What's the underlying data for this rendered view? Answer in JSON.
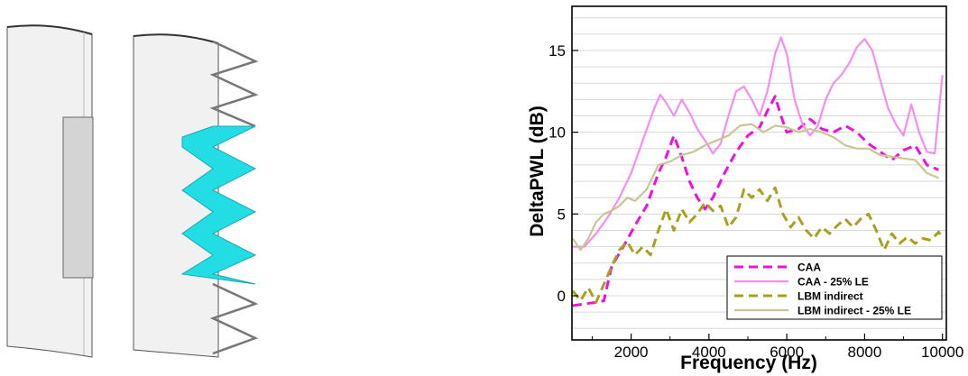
{
  "colors": {
    "blade_fill": "#f1f1f1",
    "blade_edge": "#555555",
    "insert_fill": "#d4d4d4",
    "serration_highlight": "#22dde4",
    "serration_edge": "#777777",
    "grid": "#d8d8d8"
  },
  "chart_data": {
    "type": "line",
    "xlabel": "Frequency (Hz)",
    "ylabel": "DeltaPWL (dB)",
    "xlim": [
      480,
      10100
    ],
    "ylim": [
      -2.7,
      17.7
    ],
    "xticks": [
      2000,
      4000,
      6000,
      8000,
      10000
    ],
    "yticks": [
      0,
      5,
      10,
      15
    ],
    "grid": "horizontal",
    "legend_position": "bottom-right",
    "series": [
      {
        "name": "CAA",
        "color": "#ee11dd",
        "dash": "dashed",
        "x": [
          500,
          800,
          1100,
          1300,
          1500,
          1800,
          2100,
          2400,
          2700,
          2900,
          3100,
          3300,
          3500,
          3700,
          3900,
          4100,
          4400,
          4700,
          5000,
          5300,
          5500,
          5700,
          5850,
          6000,
          6300,
          6600,
          6900,
          7200,
          7500,
          7800,
          8100,
          8400,
          8700,
          9000,
          9300,
          9600,
          9900
        ],
        "y": [
          -0.6,
          -0.5,
          -0.4,
          -0.3,
          1.8,
          3.0,
          4.3,
          5.5,
          7.5,
          8.5,
          9.8,
          8.5,
          7.0,
          6.0,
          5.3,
          6.0,
          7.5,
          8.8,
          9.8,
          10.3,
          11.3,
          12.2,
          11.0,
          10.0,
          10.2,
          10.8,
          10.2,
          10.0,
          10.4,
          10.0,
          9.3,
          8.8,
          8.3,
          8.9,
          9.2,
          8.0,
          7.7
        ]
      },
      {
        "name": "CAA - 25% LE",
        "color": "#f58ef0",
        "dash": "solid",
        "x": [
          500,
          800,
          1100,
          1400,
          1700,
          2000,
          2300,
          2600,
          2750,
          2900,
          3100,
          3300,
          3500,
          3700,
          3900,
          4100,
          4300,
          4500,
          4700,
          4900,
          5100,
          5300,
          5500,
          5700,
          5850,
          6000,
          6200,
          6400,
          6600,
          6800,
          7000,
          7200,
          7400,
          7600,
          7800,
          8000,
          8200,
          8400,
          8600,
          8800,
          9000,
          9200,
          9400,
          9600,
          9800,
          10000
        ],
        "y": [
          3.0,
          3.0,
          3.8,
          4.8,
          6.0,
          7.5,
          9.5,
          11.5,
          12.3,
          11.8,
          11.0,
          12.0,
          11.2,
          10.2,
          9.5,
          8.7,
          9.3,
          11.0,
          12.5,
          12.8,
          12.0,
          11.0,
          12.5,
          14.8,
          15.8,
          14.8,
          12.0,
          10.5,
          9.8,
          10.4,
          12.0,
          13.0,
          13.5,
          14.2,
          15.2,
          15.7,
          15.0,
          13.2,
          11.5,
          10.5,
          9.8,
          11.7,
          10.0,
          8.8,
          8.7,
          13.5
        ]
      },
      {
        "name": "LBM indirect",
        "color": "#a8a021",
        "dash": "dashed",
        "x": [
          500,
          700,
          900,
          1100,
          1300,
          1500,
          1700,
          1900,
          2100,
          2300,
          2500,
          2700,
          2900,
          3100,
          3300,
          3500,
          3700,
          3900,
          4100,
          4300,
          4500,
          4700,
          4900,
          5100,
          5300,
          5500,
          5700,
          5900,
          6100,
          6300,
          6500,
          6700,
          6900,
          7100,
          7300,
          7500,
          7700,
          7900,
          8100,
          8300,
          8500,
          8700,
          8900,
          9100,
          9300,
          9500,
          9700,
          9900,
          10000
        ],
        "y": [
          0.3,
          -0.3,
          0.5,
          -0.4,
          0.7,
          1.8,
          2.8,
          3.3,
          2.5,
          3.0,
          2.5,
          4.0,
          5.3,
          4.0,
          5.3,
          4.5,
          5.0,
          5.7,
          5.2,
          5.5,
          4.2,
          4.8,
          6.5,
          6.0,
          6.5,
          5.8,
          6.6,
          5.0,
          4.2,
          4.8,
          4.0,
          3.5,
          4.2,
          3.8,
          4.3,
          4.7,
          4.2,
          4.7,
          5.0,
          4.0,
          2.8,
          3.8,
          3.2,
          3.6,
          3.2,
          3.5,
          3.4,
          3.9,
          3.5
        ]
      },
      {
        "name": "LBM indirect - 25% LE",
        "color": "#c9c595",
        "dash": "solid",
        "x": [
          500,
          700,
          900,
          1100,
          1300,
          1500,
          1700,
          1900,
          2100,
          2400,
          2700,
          3000,
          3300,
          3600,
          3900,
          4200,
          4500,
          4800,
          5100,
          5400,
          5700,
          6000,
          6300,
          6600,
          6900,
          7200,
          7500,
          7800,
          8100,
          8400,
          8700,
          9000,
          9300,
          9600,
          9900
        ],
        "y": [
          3.5,
          2.8,
          3.5,
          4.5,
          5.0,
          5.2,
          5.5,
          6.0,
          5.8,
          6.5,
          8.0,
          8.2,
          8.6,
          8.8,
          9.2,
          9.5,
          9.8,
          10.4,
          10.5,
          10.0,
          10.4,
          10.3,
          10.0,
          10.2,
          10.0,
          9.7,
          9.2,
          9.0,
          9.0,
          8.6,
          8.5,
          8.4,
          8.3,
          7.5,
          7.2
        ]
      }
    ]
  }
}
